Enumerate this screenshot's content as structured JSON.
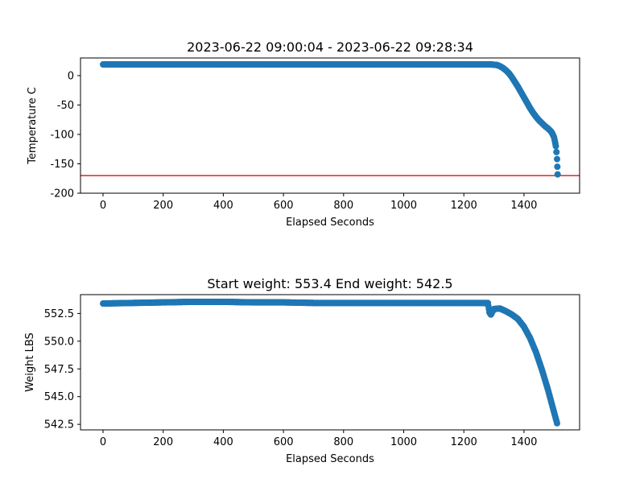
{
  "chart_data": [
    {
      "type": "scatter",
      "title": "2023-06-22 09:00:04 - 2023-06-22 09:28:34",
      "xlabel": "Elapsed Seconds",
      "ylabel": "Temperature C",
      "xlim": [
        -75,
        1585
      ],
      "ylim": [
        -200,
        30
      ],
      "xticks": [
        0,
        200,
        400,
        600,
        800,
        1000,
        1200,
        1400
      ],
      "yticks": [
        0,
        -50,
        -100,
        -150,
        -200
      ],
      "grid": false,
      "marker_color": "#1f77b4",
      "reference_line": {
        "y": -170,
        "color": "#d62728"
      },
      "series": [
        {
          "x": [
            0,
            100,
            200,
            300,
            400,
            500,
            600,
            700,
            800,
            900,
            1000,
            1100,
            1200,
            1290,
            1310,
            1320,
            1330,
            1340,
            1350,
            1360,
            1370,
            1380,
            1390,
            1400,
            1410,
            1420,
            1430,
            1440,
            1450,
            1460,
            1470,
            1480,
            1490,
            1495,
            1500,
            1503,
            1506,
            1508,
            1510,
            1511,
            1512
          ],
          "values": [
            19,
            19,
            19,
            19,
            19,
            19,
            19,
            19,
            19,
            19,
            19,
            19,
            19,
            19,
            18,
            16,
            13,
            9,
            4,
            -3,
            -11,
            -19,
            -28,
            -37,
            -46,
            -55,
            -63,
            -70,
            -76,
            -81,
            -86,
            -90,
            -95,
            -99,
            -105,
            -112,
            -120,
            -130,
            -142,
            -155,
            -168
          ]
        }
      ]
    },
    {
      "type": "scatter",
      "title": "Start weight: 553.4 End weight: 542.5",
      "xlabel": "Elapsed Seconds",
      "ylabel": "Weight LBS",
      "xlim": [
        -75,
        1585
      ],
      "ylim": [
        542,
        554.2
      ],
      "xticks": [
        0,
        200,
        400,
        600,
        800,
        1000,
        1200,
        1400
      ],
      "yticks": [
        552.5,
        550.0,
        547.5,
        545.0,
        542.5
      ],
      "ytick_labels": [
        "552.5",
        "550.0",
        "547.5",
        "545.0",
        "542.5"
      ],
      "grid": false,
      "marker_color": "#1f77b4",
      "series": [
        {
          "x": [
            0,
            100,
            200,
            300,
            400,
            500,
            600,
            700,
            800,
            900,
            1000,
            1100,
            1200,
            1280,
            1285,
            1290,
            1300,
            1320,
            1340,
            1360,
            1380,
            1400,
            1420,
            1440,
            1460,
            1480,
            1500,
            1510
          ],
          "values": [
            553.4,
            553.45,
            553.5,
            553.55,
            553.55,
            553.5,
            553.5,
            553.45,
            553.45,
            553.45,
            553.45,
            553.45,
            553.45,
            553.45,
            552.6,
            552.4,
            552.9,
            552.95,
            552.7,
            552.4,
            552.0,
            551.3,
            550.3,
            549.0,
            547.4,
            545.6,
            543.6,
            542.6
          ]
        }
      ]
    }
  ]
}
